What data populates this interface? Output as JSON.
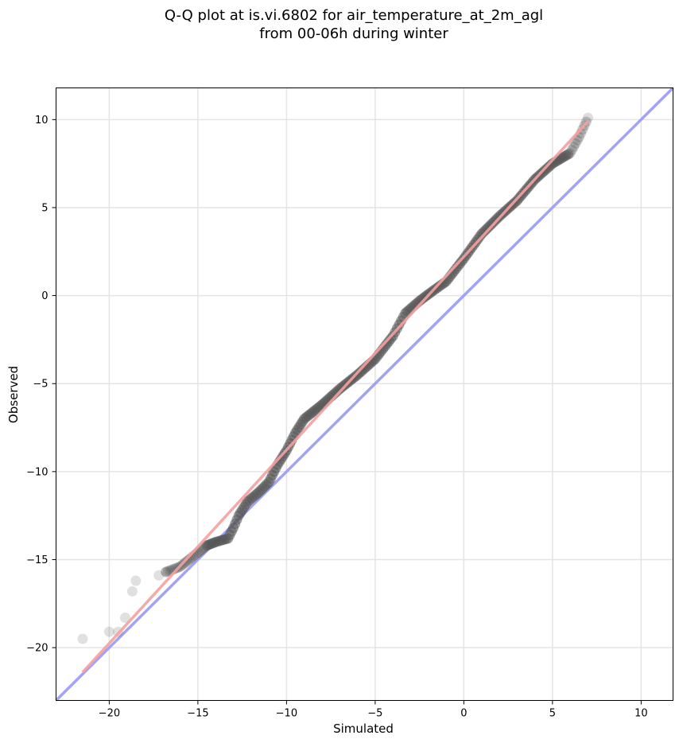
{
  "chart_data": {
    "type": "scatter",
    "title": [
      "Q-Q plot at is.vi.6802 for air_temperature_at_2m_agl",
      "from 00-06h during winter"
    ],
    "xlabel": "Simulated",
    "ylabel": "Observed",
    "xlim": [
      -23,
      11.8
    ],
    "ylim": [
      -23,
      11.8
    ],
    "xticks": [
      -20,
      -15,
      -10,
      -5,
      0,
      5,
      10
    ],
    "yticks": [
      -20,
      -15,
      -10,
      -5,
      0,
      5,
      10
    ],
    "xtick_labels": [
      "−20",
      "−15",
      "−10",
      "−5",
      "0",
      "5",
      "10"
    ],
    "ytick_labels": [
      "−20",
      "−15",
      "−10",
      "−5",
      "0",
      "5",
      "10"
    ],
    "grid": true,
    "colors": {
      "points": "#555555",
      "identity_line": "#a3a3f5",
      "fit_line": "#f5a0a0"
    },
    "quantile_knots": [
      [
        -21.5,
        -19.5
      ],
      [
        -20.0,
        -19.1
      ],
      [
        -19.5,
        -19.1
      ],
      [
        -19.1,
        -18.3
      ],
      [
        -18.7,
        -16.8
      ],
      [
        -18.5,
        -16.2
      ],
      [
        -17.2,
        -15.9
      ],
      [
        -16.8,
        -15.7
      ],
      [
        -16.0,
        -15.4
      ],
      [
        -15.5,
        -15.0
      ],
      [
        -15.0,
        -14.6
      ],
      [
        -14.5,
        -14.2
      ],
      [
        -14.0,
        -14.0
      ],
      [
        -13.3,
        -13.8
      ],
      [
        -13.0,
        -13.2
      ],
      [
        -12.7,
        -12.5
      ],
      [
        -12.2,
        -11.7
      ],
      [
        -11.6,
        -11.2
      ],
      [
        -11.0,
        -10.6
      ],
      [
        -10.5,
        -9.6
      ],
      [
        -10.0,
        -8.8
      ],
      [
        -9.5,
        -7.8
      ],
      [
        -9.0,
        -7.0
      ],
      [
        -8.0,
        -6.2
      ],
      [
        -7.0,
        -5.3
      ],
      [
        -6.0,
        -4.5
      ],
      [
        -5.0,
        -3.6
      ],
      [
        -4.0,
        -2.3
      ],
      [
        -3.3,
        -1.0
      ],
      [
        -2.5,
        -0.3
      ],
      [
        -1.7,
        0.3
      ],
      [
        -1.0,
        0.8
      ],
      [
        0.0,
        2.1
      ],
      [
        1.0,
        3.5
      ],
      [
        2.0,
        4.5
      ],
      [
        3.0,
        5.4
      ],
      [
        4.0,
        6.6
      ],
      [
        5.0,
        7.5
      ],
      [
        6.0,
        8.1
      ],
      [
        6.5,
        9.0
      ],
      [
        7.0,
        10.1
      ]
    ],
    "identity_line": {
      "x": [
        -23,
        11.8
      ],
      "y": [
        -23,
        11.8
      ]
    },
    "fit_line": {
      "x": [
        -21.5,
        7.0
      ],
      "y": [
        -21.4,
        9.9
      ]
    }
  }
}
